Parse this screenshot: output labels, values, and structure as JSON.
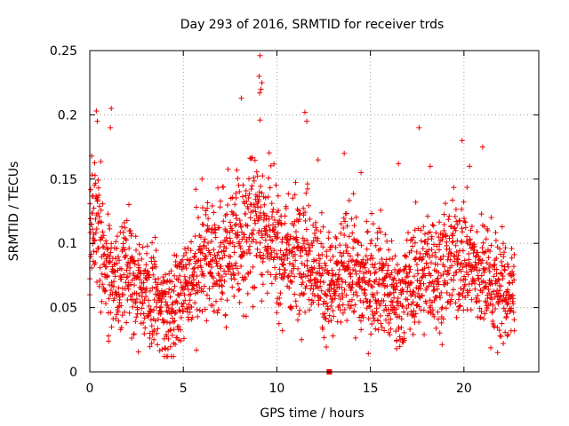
{
  "chart_data": {
    "type": "scatter",
    "title": "Day 293 of 2016, SRMTID for receiver trds",
    "xlabel": "GPS time / hours",
    "ylabel": "SRMTID / TECUs",
    "xlim": [
      0,
      24
    ],
    "ylim": [
      0,
      0.25
    ],
    "xticks": [
      0,
      5,
      10,
      15,
      20
    ],
    "yticks": [
      0,
      0.05,
      0.1,
      0.15,
      0.2,
      0.25
    ],
    "xtick_labels": [
      "0",
      "5",
      "10",
      "15",
      "20"
    ],
    "ytick_labels": [
      "0",
      "0.05",
      "0.1",
      "0.15",
      "0.2",
      "0.25"
    ],
    "grid": true,
    "marker": "+",
    "color": "#ee0000",
    "series": [
      {
        "name": "SRMTID",
        "trend_profile": {
          "x": [
            0,
            0.5,
            1,
            1.5,
            2,
            2.5,
            3,
            3.5,
            4,
            4.5,
            5,
            5.5,
            6,
            6.5,
            7,
            7.5,
            8,
            8.5,
            9,
            9.5,
            10,
            10.5,
            11,
            11.5,
            12,
            12.5,
            13,
            13.5,
            14,
            14.5,
            15,
            15.5,
            16,
            16.5,
            17,
            17.5,
            18,
            18.5,
            19,
            19.5,
            20,
            20.5,
            21,
            21.5,
            22,
            22.5
          ],
          "y": [
            0.11,
            0.12,
            0.075,
            0.065,
            0.085,
            0.07,
            0.062,
            0.055,
            0.05,
            0.052,
            0.068,
            0.075,
            0.085,
            0.08,
            0.09,
            0.095,
            0.1,
            0.11,
            0.125,
            0.105,
            0.095,
            0.09,
            0.095,
            0.1,
            0.085,
            0.07,
            0.065,
            0.075,
            0.085,
            0.07,
            0.072,
            0.078,
            0.06,
            0.055,
            0.065,
            0.075,
            0.08,
            0.078,
            0.082,
            0.088,
            0.09,
            0.08,
            0.075,
            0.07,
            0.065,
            0.06
          ]
        },
        "spread": 0.022,
        "n_points": 2200,
        "x_end": 22.7,
        "outliers": [
          {
            "x": 9.1,
            "y": 0.246
          },
          {
            "x": 9.05,
            "y": 0.23
          },
          {
            "x": 9.2,
            "y": 0.225
          },
          {
            "x": 9.15,
            "y": 0.22
          },
          {
            "x": 9.08,
            "y": 0.217
          },
          {
            "x": 9.1,
            "y": 0.196
          },
          {
            "x": 8.1,
            "y": 0.213
          },
          {
            "x": 1.15,
            "y": 0.205
          },
          {
            "x": 0.35,
            "y": 0.203
          },
          {
            "x": 11.5,
            "y": 0.202
          },
          {
            "x": 11.6,
            "y": 0.195
          },
          {
            "x": 0.4,
            "y": 0.195
          },
          {
            "x": 1.1,
            "y": 0.19
          },
          {
            "x": 17.6,
            "y": 0.19
          },
          {
            "x": 19.9,
            "y": 0.18
          },
          {
            "x": 21.0,
            "y": 0.175
          },
          {
            "x": 13.6,
            "y": 0.17
          },
          {
            "x": 0.1,
            "y": 0.168
          },
          {
            "x": 12.2,
            "y": 0.165
          },
          {
            "x": 16.5,
            "y": 0.162
          },
          {
            "x": 14.5,
            "y": 0.155
          },
          {
            "x": 18.2,
            "y": 0.16
          },
          {
            "x": 20.3,
            "y": 0.16
          },
          {
            "x": 6.0,
            "y": 0.15
          },
          {
            "x": 4.1,
            "y": 0.012
          },
          {
            "x": 4.05,
            "y": 0.018
          },
          {
            "x": 5.7,
            "y": 0.017
          },
          {
            "x": 16.4,
            "y": 0.018
          },
          {
            "x": 21.8,
            "y": 0.015
          },
          {
            "x": 1.0,
            "y": 0.028
          },
          {
            "x": 3.2,
            "y": 0.03
          },
          {
            "x": 10.3,
            "y": 0.032
          },
          {
            "x": 13.0,
            "y": 0.028
          },
          {
            "x": 12.9,
            "y": 0.04
          },
          {
            "x": 22.7,
            "y": 0.032
          },
          {
            "x": 0.0,
            "y": 0.06
          }
        ],
        "zero_marker": {
          "x": 12.8,
          "y": 0
        }
      }
    ]
  }
}
